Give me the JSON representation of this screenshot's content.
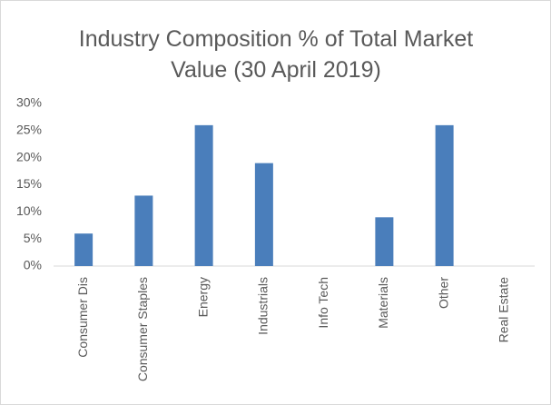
{
  "chart_data": {
    "type": "bar",
    "title": "Industry Composition % of Total Market Value (30 April 2019)",
    "categories": [
      "Consumer Dis",
      "Consumer Staples",
      "Energy",
      "Industrials",
      "Info Tech",
      "Materials",
      "Other",
      "Real Estate"
    ],
    "values": [
      6,
      13,
      26,
      19,
      0,
      9,
      26,
      0
    ],
    "color": "#4a7ebb",
    "ylim": [
      0,
      30
    ],
    "yticks": [
      {
        "value": 0,
        "label": "0%"
      },
      {
        "value": 5,
        "label": "5%"
      },
      {
        "value": 10,
        "label": "10%"
      },
      {
        "value": 15,
        "label": "15%"
      },
      {
        "value": 20,
        "label": "20%"
      },
      {
        "value": 25,
        "label": "25%"
      },
      {
        "value": 30,
        "label": "30%"
      }
    ],
    "grid": false
  }
}
